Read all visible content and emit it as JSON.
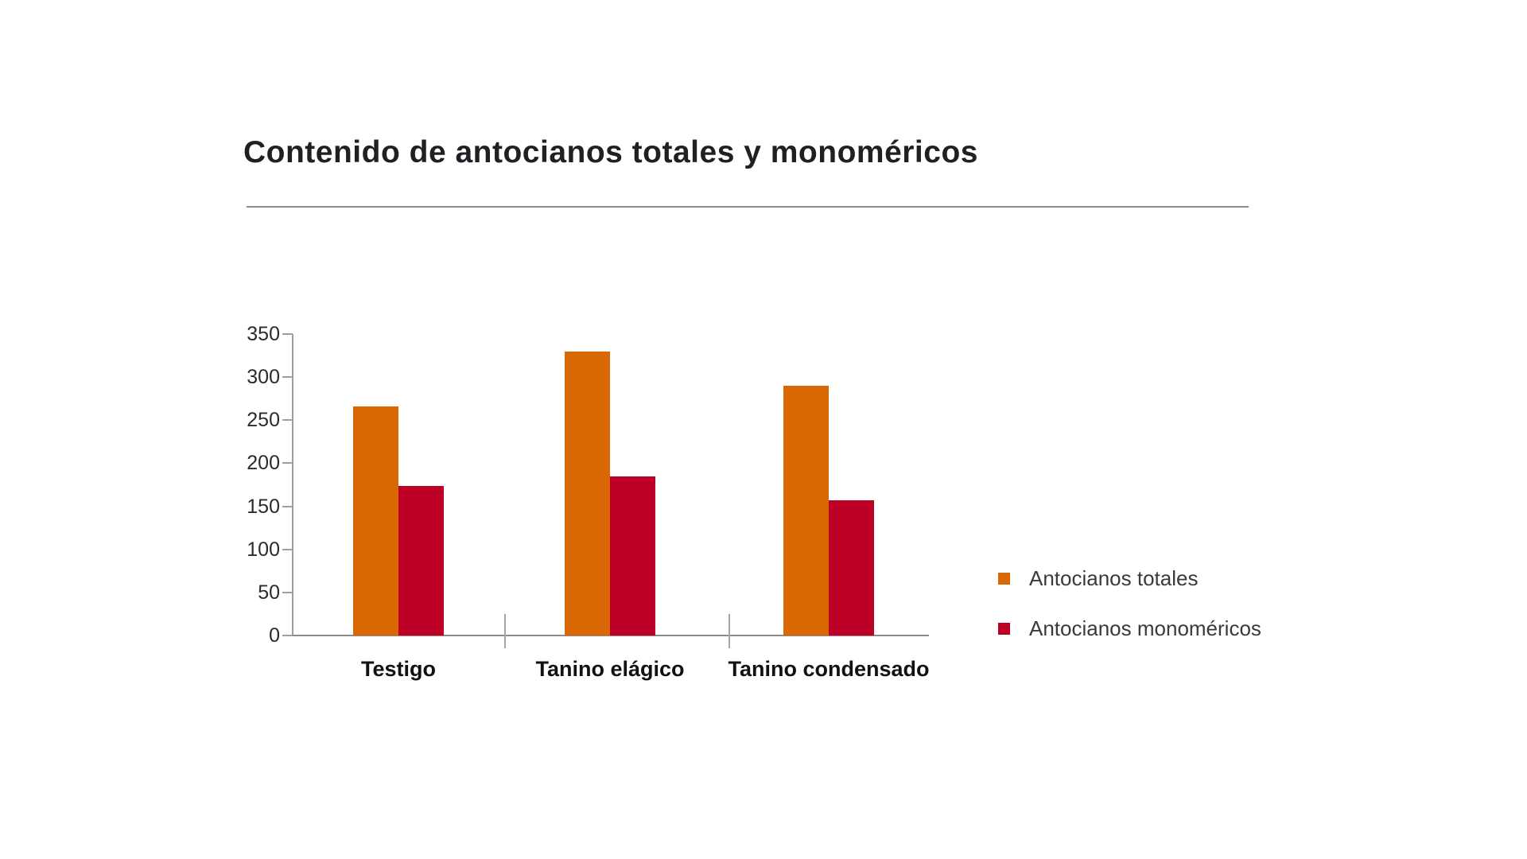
{
  "header": {
    "title": "Contenido de antocianos totales y monoméricos"
  },
  "chart_data": {
    "type": "bar",
    "title": "Contenido de antocianos totales y monoméricos",
    "categories": [
      "Testigo",
      "Tanino elágico",
      "Tanino condensado"
    ],
    "series": [
      {
        "name": "Antocianos totales",
        "color": "#D96704",
        "values": [
          266,
          330,
          290
        ]
      },
      {
        "name": "Antocianos monoméricos",
        "color": "#BE0027",
        "values": [
          174,
          185,
          157
        ]
      }
    ],
    "xlabel": "",
    "ylabel": "",
    "ylim": [
      0,
      350
    ],
    "yticks": [
      0,
      50,
      100,
      150,
      200,
      250,
      300,
      350
    ],
    "grid": false,
    "legend_position": "right",
    "background": "#ffffff"
  }
}
